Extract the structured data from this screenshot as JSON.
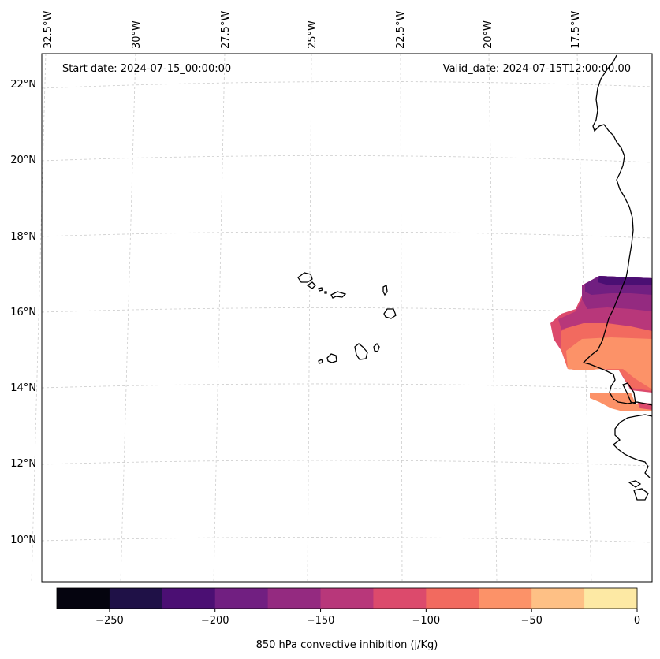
{
  "annotations": {
    "start_date": "Start date: 2024-07-15_00:00:00",
    "valid_date": "Valid_date: 2024-07-15T12:00:00.00"
  },
  "longitude_labels": [
    "32.5°W",
    "30°W",
    "27.5°W",
    "25°W",
    "22.5°W",
    "20°W",
    "17.5°W"
  ],
  "latitude_labels": [
    "22°N",
    "20°N",
    "18°N",
    "16°N",
    "14°N",
    "12°N",
    "10°N"
  ],
  "colorbar": {
    "label": "850 hPa convective inhibition (j/Kg)",
    "ticks": [
      "−250",
      "−200",
      "−150",
      "−100",
      "−50",
      "0"
    ],
    "levels": [
      -275,
      -250,
      -225,
      -200,
      -175,
      -150,
      -125,
      -100,
      -75,
      -50,
      -25,
      0
    ],
    "colors": [
      "#05040f",
      "#1f1147",
      "#4b0f73",
      "#711f81",
      "#942a80",
      "#b8377a",
      "#dc4a6c",
      "#f26a5f",
      "#fc9268",
      "#fec085",
      "#fde9a4"
    ]
  }
}
